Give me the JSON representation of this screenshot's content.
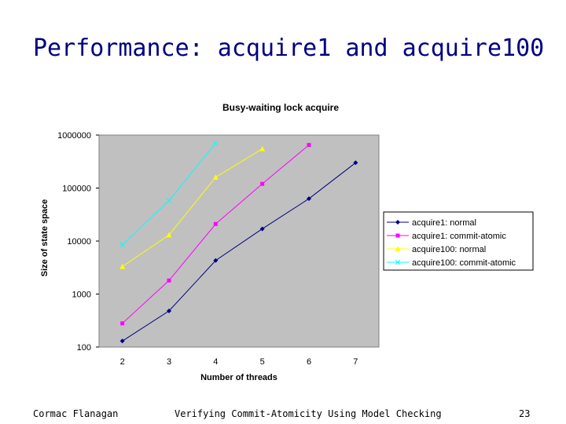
{
  "slide": {
    "title": "Performance: acquire1 and acquire100"
  },
  "footer": {
    "author": "Cormac Flanagan",
    "talk": "Verifying Commit-Atomicity Using Model Checking",
    "page": "23"
  },
  "chart_data": {
    "type": "line",
    "title": "Busy-waiting lock acquire",
    "xlabel": "Number of threads",
    "ylabel": "Size of state space",
    "y_scale": "log",
    "categories": [
      "2",
      "3",
      "4",
      "5",
      "6",
      "7"
    ],
    "ylim": [
      100,
      1000000
    ],
    "y_ticks": [
      100,
      1000,
      10000,
      100000,
      1000000
    ],
    "y_tick_labels": [
      "100",
      "1000",
      "10000",
      "100000",
      "1000000"
    ],
    "grid": false,
    "legend_position": "right",
    "plot_background": "#c0c0c0",
    "series": [
      {
        "name": "acquire1: normal",
        "color": "#000080",
        "marker": "diamond",
        "x": [
          2,
          3,
          4,
          5,
          6,
          7
        ],
        "values": [
          130,
          480,
          4300,
          17000,
          63000,
          300000
        ]
      },
      {
        "name": "acquire1: commit-atomic",
        "color": "#ff00ff",
        "marker": "square",
        "x": [
          2,
          3,
          4,
          5,
          6
        ],
        "values": [
          280,
          1800,
          21000,
          120000,
          650000
        ]
      },
      {
        "name": "acquire100: normal",
        "color": "#ffff00",
        "marker": "triangle",
        "x": [
          2,
          3,
          4,
          5
        ],
        "values": [
          3300,
          13000,
          160000,
          550000
        ]
      },
      {
        "name": "acquire100: commit-atomic",
        "color": "#00ffff",
        "marker": "x",
        "x": [
          2,
          3,
          4
        ],
        "values": [
          8500,
          58000,
          700000
        ]
      }
    ]
  }
}
